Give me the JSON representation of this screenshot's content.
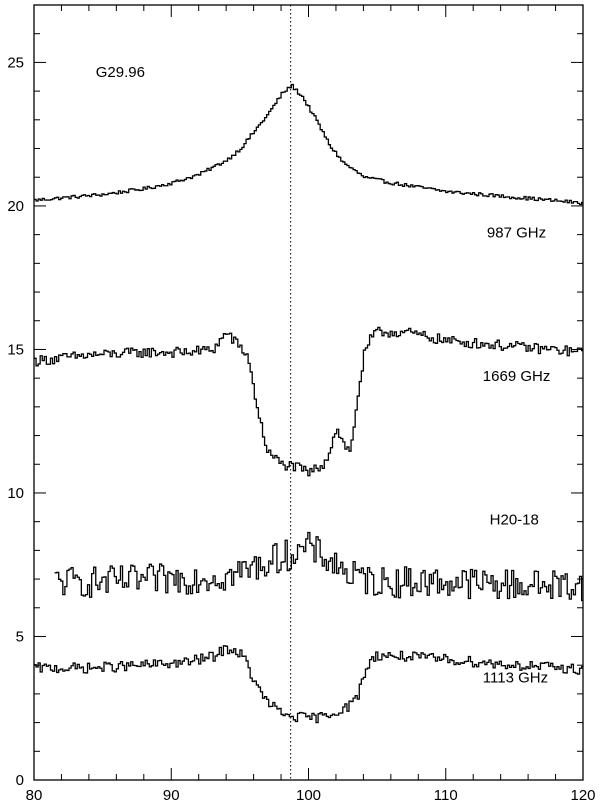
{
  "chart_data": {
    "type": "line",
    "title": "",
    "xlabel": "",
    "ylabel": "",
    "xlim": [
      80,
      120
    ],
    "ylim": [
      0,
      27
    ],
    "x_ticks": [
      "80",
      "90",
      "100",
      "110",
      "120"
    ],
    "y_ticks": [
      "0",
      "5",
      "10",
      "15",
      "20",
      "25"
    ],
    "reference_line_x": 98.7,
    "annotations": [
      {
        "text": "G29.96",
        "x": 84.5,
        "y": 24.5
      },
      {
        "text": "987 GHz",
        "x": 113,
        "y": 18.9
      },
      {
        "text": "1669 GHz",
        "x": 112.7,
        "y": 13.9
      },
      {
        "text": "H20-18",
        "x": 113.2,
        "y": 8.9
      },
      {
        "text": "1113 GHz",
        "x": 112.7,
        "y": 3.4
      }
    ],
    "series": [
      {
        "name": "987 GHz",
        "style": "smooth",
        "x": [
          80,
          85,
          88,
          90,
          92,
          94,
          95,
          96,
          97,
          98,
          98.7,
          99.5,
          100.5,
          101.5,
          102.5,
          104,
          106,
          110,
          115,
          120
        ],
        "values": [
          20.2,
          20.4,
          20.6,
          20.8,
          21.1,
          21.6,
          22.0,
          22.6,
          23.2,
          23.9,
          24.2,
          23.8,
          23.0,
          22.1,
          21.5,
          21.0,
          20.8,
          20.5,
          20.3,
          20.1
        ]
      },
      {
        "name": "1669 GHz",
        "style": "noisy",
        "x": [
          80,
          84,
          88,
          91,
          93,
          94,
          94.5,
          95.5,
          96,
          96.5,
          97,
          98,
          99,
          100,
          101,
          101.5,
          102,
          102.5,
          103,
          103.5,
          104,
          104.5,
          105,
          107,
          110,
          115,
          120
        ],
        "values": [
          14.6,
          14.8,
          14.9,
          14.9,
          15.0,
          15.6,
          15.3,
          14.8,
          13.5,
          12.3,
          11.4,
          11.0,
          10.9,
          10.7,
          11.0,
          11.5,
          12.3,
          11.7,
          11.4,
          13.3,
          14.8,
          15.4,
          15.6,
          15.6,
          15.3,
          15.1,
          14.9
        ]
      },
      {
        "name": "H20-18",
        "style": "very-noisy",
        "x": [
          81.5,
          85,
          90,
          94,
          96,
          97,
          98,
          99,
          100,
          101,
          102,
          103,
          105,
          110,
          115,
          120
        ],
        "values": [
          6.9,
          6.9,
          7.0,
          7.1,
          7.4,
          7.6,
          7.8,
          7.9,
          8.1,
          7.8,
          7.5,
          7.1,
          6.9,
          6.9,
          6.8,
          6.8
        ]
      },
      {
        "name": "1113 GHz",
        "style": "noisy",
        "x": [
          80,
          84,
          88,
          91,
          93,
          94,
          95,
          95.5,
          96,
          96.5,
          97,
          98,
          99,
          100,
          101,
          102,
          103,
          103.5,
          104,
          104.5,
          105,
          107,
          110,
          115,
          120
        ],
        "values": [
          3.9,
          3.9,
          4.0,
          4.1,
          4.3,
          4.6,
          4.4,
          4.0,
          3.4,
          3.0,
          2.7,
          2.3,
          2.2,
          2.15,
          2.2,
          2.4,
          2.6,
          2.9,
          3.7,
          4.2,
          4.35,
          4.3,
          4.2,
          4.0,
          3.85
        ]
      }
    ]
  }
}
